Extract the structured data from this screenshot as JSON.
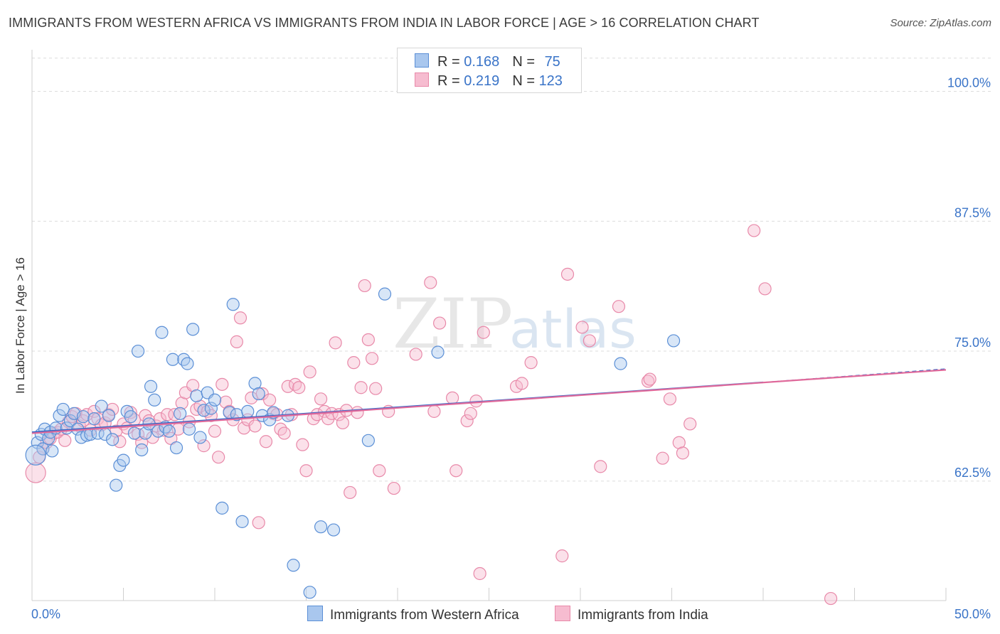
{
  "title": "IMMIGRANTS FROM WESTERN AFRICA VS IMMIGRANTS FROM INDIA IN LABOR FORCE | AGE > 16 CORRELATION CHART",
  "source": "Source: ZipAtlas.com",
  "watermark": {
    "zip": "ZIP",
    "atlas": "atlas"
  },
  "legend": {
    "series1": {
      "r_label": "R = ",
      "r_value": "0.168",
      "n_label": "N = ",
      "n_value": "75"
    },
    "series2": {
      "r_label": "R = ",
      "r_value": "0.219",
      "n_label": "N = ",
      "n_value": "123"
    }
  },
  "colors": {
    "blue_fill": "#a9c7ee",
    "blue_stroke": "#5b8fd6",
    "blue_line": "#3569c8",
    "pink_fill": "#f6bcd0",
    "pink_stroke": "#e889a9",
    "pink_line": "#e0699a",
    "tick_label": "#3a74c8",
    "grid": "#dcdcdc"
  },
  "chart_data": {
    "type": "scatter",
    "title": "IMMIGRANTS FROM WESTERN AFRICA VS IMMIGRANTS FROM INDIA IN LABOR FORCE | AGE > 16 CORRELATION CHART",
    "xlabel": "",
    "ylabel": "In Labor Force | Age > 16",
    "xlim": [
      0,
      50
    ],
    "ylim": [
      51,
      104
    ],
    "x_tick_labels": [
      "0.0%",
      "50.0%"
    ],
    "y_ticks": [
      62.5,
      75.0,
      87.5,
      100.0
    ],
    "y_tick_labels": [
      "62.5%",
      "75.0%",
      "87.5%",
      "100.0%"
    ],
    "legend_position": "top-center",
    "series": [
      {
        "name": "Immigrants from Western Africa",
        "color": "blue",
        "r": 0.168,
        "n": 75,
        "trend": {
          "x": [
            0.0,
            40.0
          ],
          "y": [
            67.2,
            72.0
          ],
          "dashed_to_x": 50.0,
          "dashed_to_y": 73.3
        },
        "points": [
          [
            0.3,
            66.2
          ],
          [
            0.5,
            67.0
          ],
          [
            0.6,
            65.6
          ],
          [
            0.7,
            67.5
          ],
          [
            0.9,
            66.6
          ],
          [
            1.0,
            67.2
          ],
          [
            1.1,
            65.4
          ],
          [
            1.3,
            67.6
          ],
          [
            1.5,
            68.8
          ],
          [
            1.7,
            69.4
          ],
          [
            1.9,
            67.6
          ],
          [
            2.1,
            68.3
          ],
          [
            2.3,
            69.0
          ],
          [
            2.5,
            67.5
          ],
          [
            2.7,
            66.7
          ],
          [
            2.8,
            68.7
          ],
          [
            3.0,
            66.9
          ],
          [
            3.2,
            67.0
          ],
          [
            3.4,
            68.5
          ],
          [
            3.6,
            67.1
          ],
          [
            3.8,
            69.7
          ],
          [
            4.0,
            67.0
          ],
          [
            4.2,
            68.8
          ],
          [
            4.4,
            66.5
          ],
          [
            4.6,
            62.1
          ],
          [
            4.8,
            64.0
          ],
          [
            5.0,
            64.5
          ],
          [
            5.2,
            69.2
          ],
          [
            5.4,
            68.7
          ],
          [
            5.6,
            67.1
          ],
          [
            5.8,
            75.0
          ],
          [
            6.0,
            65.5
          ],
          [
            6.2,
            67.1
          ],
          [
            6.4,
            68.0
          ],
          [
            6.5,
            71.6
          ],
          [
            6.7,
            70.3
          ],
          [
            6.9,
            67.3
          ],
          [
            7.1,
            76.8
          ],
          [
            7.3,
            67.7
          ],
          [
            7.5,
            67.3
          ],
          [
            7.7,
            74.2
          ],
          [
            7.9,
            65.7
          ],
          [
            8.1,
            69.0
          ],
          [
            8.3,
            74.2
          ],
          [
            8.5,
            73.8
          ],
          [
            8.6,
            67.5
          ],
          [
            8.8,
            77.1
          ],
          [
            9.0,
            70.7
          ],
          [
            9.2,
            66.7
          ],
          [
            9.4,
            69.3
          ],
          [
            9.6,
            71.0
          ],
          [
            9.8,
            69.5
          ],
          [
            10.0,
            70.3
          ],
          [
            10.4,
            59.9
          ],
          [
            10.8,
            69.1
          ],
          [
            11.0,
            79.5
          ],
          [
            11.2,
            68.9
          ],
          [
            11.5,
            58.6
          ],
          [
            11.8,
            69.2
          ],
          [
            12.2,
            71.9
          ],
          [
            12.4,
            70.9
          ],
          [
            12.6,
            68.8
          ],
          [
            13.0,
            68.4
          ],
          [
            13.2,
            69.1
          ],
          [
            14.0,
            68.8
          ],
          [
            14.3,
            54.4
          ],
          [
            15.2,
            51.8
          ],
          [
            15.8,
            58.1
          ],
          [
            16.5,
            57.8
          ],
          [
            18.4,
            66.4
          ],
          [
            19.3,
            80.5
          ],
          [
            22.2,
            74.9
          ],
          [
            32.2,
            73.8
          ],
          [
            35.1,
            76.0
          ],
          [
            0.2,
            65.0
          ]
        ]
      },
      {
        "name": "Immigrants from India",
        "color": "pink",
        "r": 0.219,
        "n": 123,
        "trend": {
          "x": [
            0.0,
            50.0
          ],
          "y": [
            67.1,
            73.2
          ]
        },
        "points": [
          [
            0.2,
            63.3
          ],
          [
            0.4,
            64.8
          ],
          [
            0.6,
            65.6
          ],
          [
            0.8,
            66.2
          ],
          [
            1.0,
            66.6
          ],
          [
            1.2,
            67.1
          ],
          [
            1.4,
            67.2
          ],
          [
            1.6,
            67.5
          ],
          [
            1.8,
            66.4
          ],
          [
            2.0,
            68.2
          ],
          [
            2.2,
            68.7
          ],
          [
            2.4,
            69.0
          ],
          [
            2.6,
            67.8
          ],
          [
            2.8,
            68.3
          ],
          [
            3.0,
            68.9
          ],
          [
            3.2,
            67.4
          ],
          [
            3.4,
            69.2
          ],
          [
            3.6,
            68.5
          ],
          [
            3.8,
            67.9
          ],
          [
            4.0,
            68.1
          ],
          [
            4.2,
            68.9
          ],
          [
            4.4,
            69.4
          ],
          [
            4.6,
            67.3
          ],
          [
            4.8,
            66.3
          ],
          [
            5.0,
            68.0
          ],
          [
            5.2,
            67.6
          ],
          [
            5.4,
            69.1
          ],
          [
            5.6,
            68.4
          ],
          [
            5.8,
            67.0
          ],
          [
            6.0,
            66.2
          ],
          [
            6.2,
            68.8
          ],
          [
            6.4,
            68.3
          ],
          [
            6.6,
            66.7
          ],
          [
            6.8,
            67.8
          ],
          [
            7.0,
            68.5
          ],
          [
            7.2,
            67.4
          ],
          [
            7.4,
            68.9
          ],
          [
            7.6,
            66.6
          ],
          [
            7.8,
            68.9
          ],
          [
            8.0,
            67.5
          ],
          [
            8.2,
            70.0
          ],
          [
            8.4,
            71.0
          ],
          [
            8.6,
            68.2
          ],
          [
            8.8,
            71.7
          ],
          [
            9.0,
            69.4
          ],
          [
            9.2,
            69.7
          ],
          [
            9.4,
            65.9
          ],
          [
            9.6,
            69.2
          ],
          [
            9.8,
            68.8
          ],
          [
            10.0,
            67.3
          ],
          [
            10.2,
            64.8
          ],
          [
            10.4,
            71.8
          ],
          [
            10.6,
            70.1
          ],
          [
            10.8,
            69.2
          ],
          [
            11.0,
            68.4
          ],
          [
            11.2,
            75.9
          ],
          [
            11.4,
            78.2
          ],
          [
            11.6,
            67.6
          ],
          [
            11.8,
            68.4
          ],
          [
            12.0,
            70.5
          ],
          [
            12.2,
            67.8
          ],
          [
            12.4,
            58.5
          ],
          [
            12.6,
            70.9
          ],
          [
            12.8,
            66.3
          ],
          [
            13.0,
            70.3
          ],
          [
            13.2,
            69.0
          ],
          [
            13.4,
            68.9
          ],
          [
            13.6,
            67.5
          ],
          [
            13.8,
            67.1
          ],
          [
            14.0,
            71.6
          ],
          [
            14.2,
            68.9
          ],
          [
            14.4,
            71.8
          ],
          [
            14.6,
            71.5
          ],
          [
            14.8,
            66.0
          ],
          [
            15.0,
            63.5
          ],
          [
            15.2,
            73.0
          ],
          [
            15.4,
            68.5
          ],
          [
            15.6,
            68.9
          ],
          [
            15.8,
            70.4
          ],
          [
            16.0,
            69.2
          ],
          [
            16.2,
            68.5
          ],
          [
            16.4,
            69.0
          ],
          [
            16.6,
            75.8
          ],
          [
            16.8,
            68.9
          ],
          [
            17.0,
            68.1
          ],
          [
            17.2,
            69.3
          ],
          [
            17.4,
            61.4
          ],
          [
            17.6,
            73.9
          ],
          [
            17.8,
            69.1
          ],
          [
            18.0,
            71.5
          ],
          [
            18.2,
            81.3
          ],
          [
            18.4,
            76.1
          ],
          [
            18.6,
            74.3
          ],
          [
            18.8,
            71.4
          ],
          [
            19.0,
            63.5
          ],
          [
            19.5,
            69.2
          ],
          [
            19.8,
            61.8
          ],
          [
            21.0,
            74.7
          ],
          [
            21.8,
            81.6
          ],
          [
            22.0,
            69.2
          ],
          [
            22.3,
            77.7
          ],
          [
            23.0,
            70.5
          ],
          [
            23.2,
            63.5
          ],
          [
            23.8,
            68.3
          ],
          [
            24.0,
            69.0
          ],
          [
            24.3,
            70.2
          ],
          [
            24.5,
            53.6
          ],
          [
            24.7,
            76.8
          ],
          [
            26.5,
            71.6
          ],
          [
            26.8,
            71.9
          ],
          [
            27.3,
            73.9
          ],
          [
            29.0,
            55.3
          ],
          [
            29.3,
            82.4
          ],
          [
            30.1,
            77.3
          ],
          [
            30.5,
            76.0
          ],
          [
            31.1,
            63.9
          ],
          [
            32.1,
            79.3
          ],
          [
            33.7,
            72.1
          ],
          [
            33.8,
            72.3
          ],
          [
            34.5,
            64.7
          ],
          [
            34.9,
            70.4
          ],
          [
            35.4,
            66.2
          ],
          [
            35.6,
            65.2
          ],
          [
            36.0,
            68.0
          ],
          [
            39.5,
            86.6
          ],
          [
            40.1,
            81.0
          ],
          [
            43.7,
            51.2
          ]
        ]
      }
    ]
  },
  "axis_labels": {
    "x_min": "0.0%",
    "x_max": "50.0%"
  },
  "bottom_legend": {
    "series1": "Immigrants from Western Africa",
    "series2": "Immigrants from India"
  }
}
